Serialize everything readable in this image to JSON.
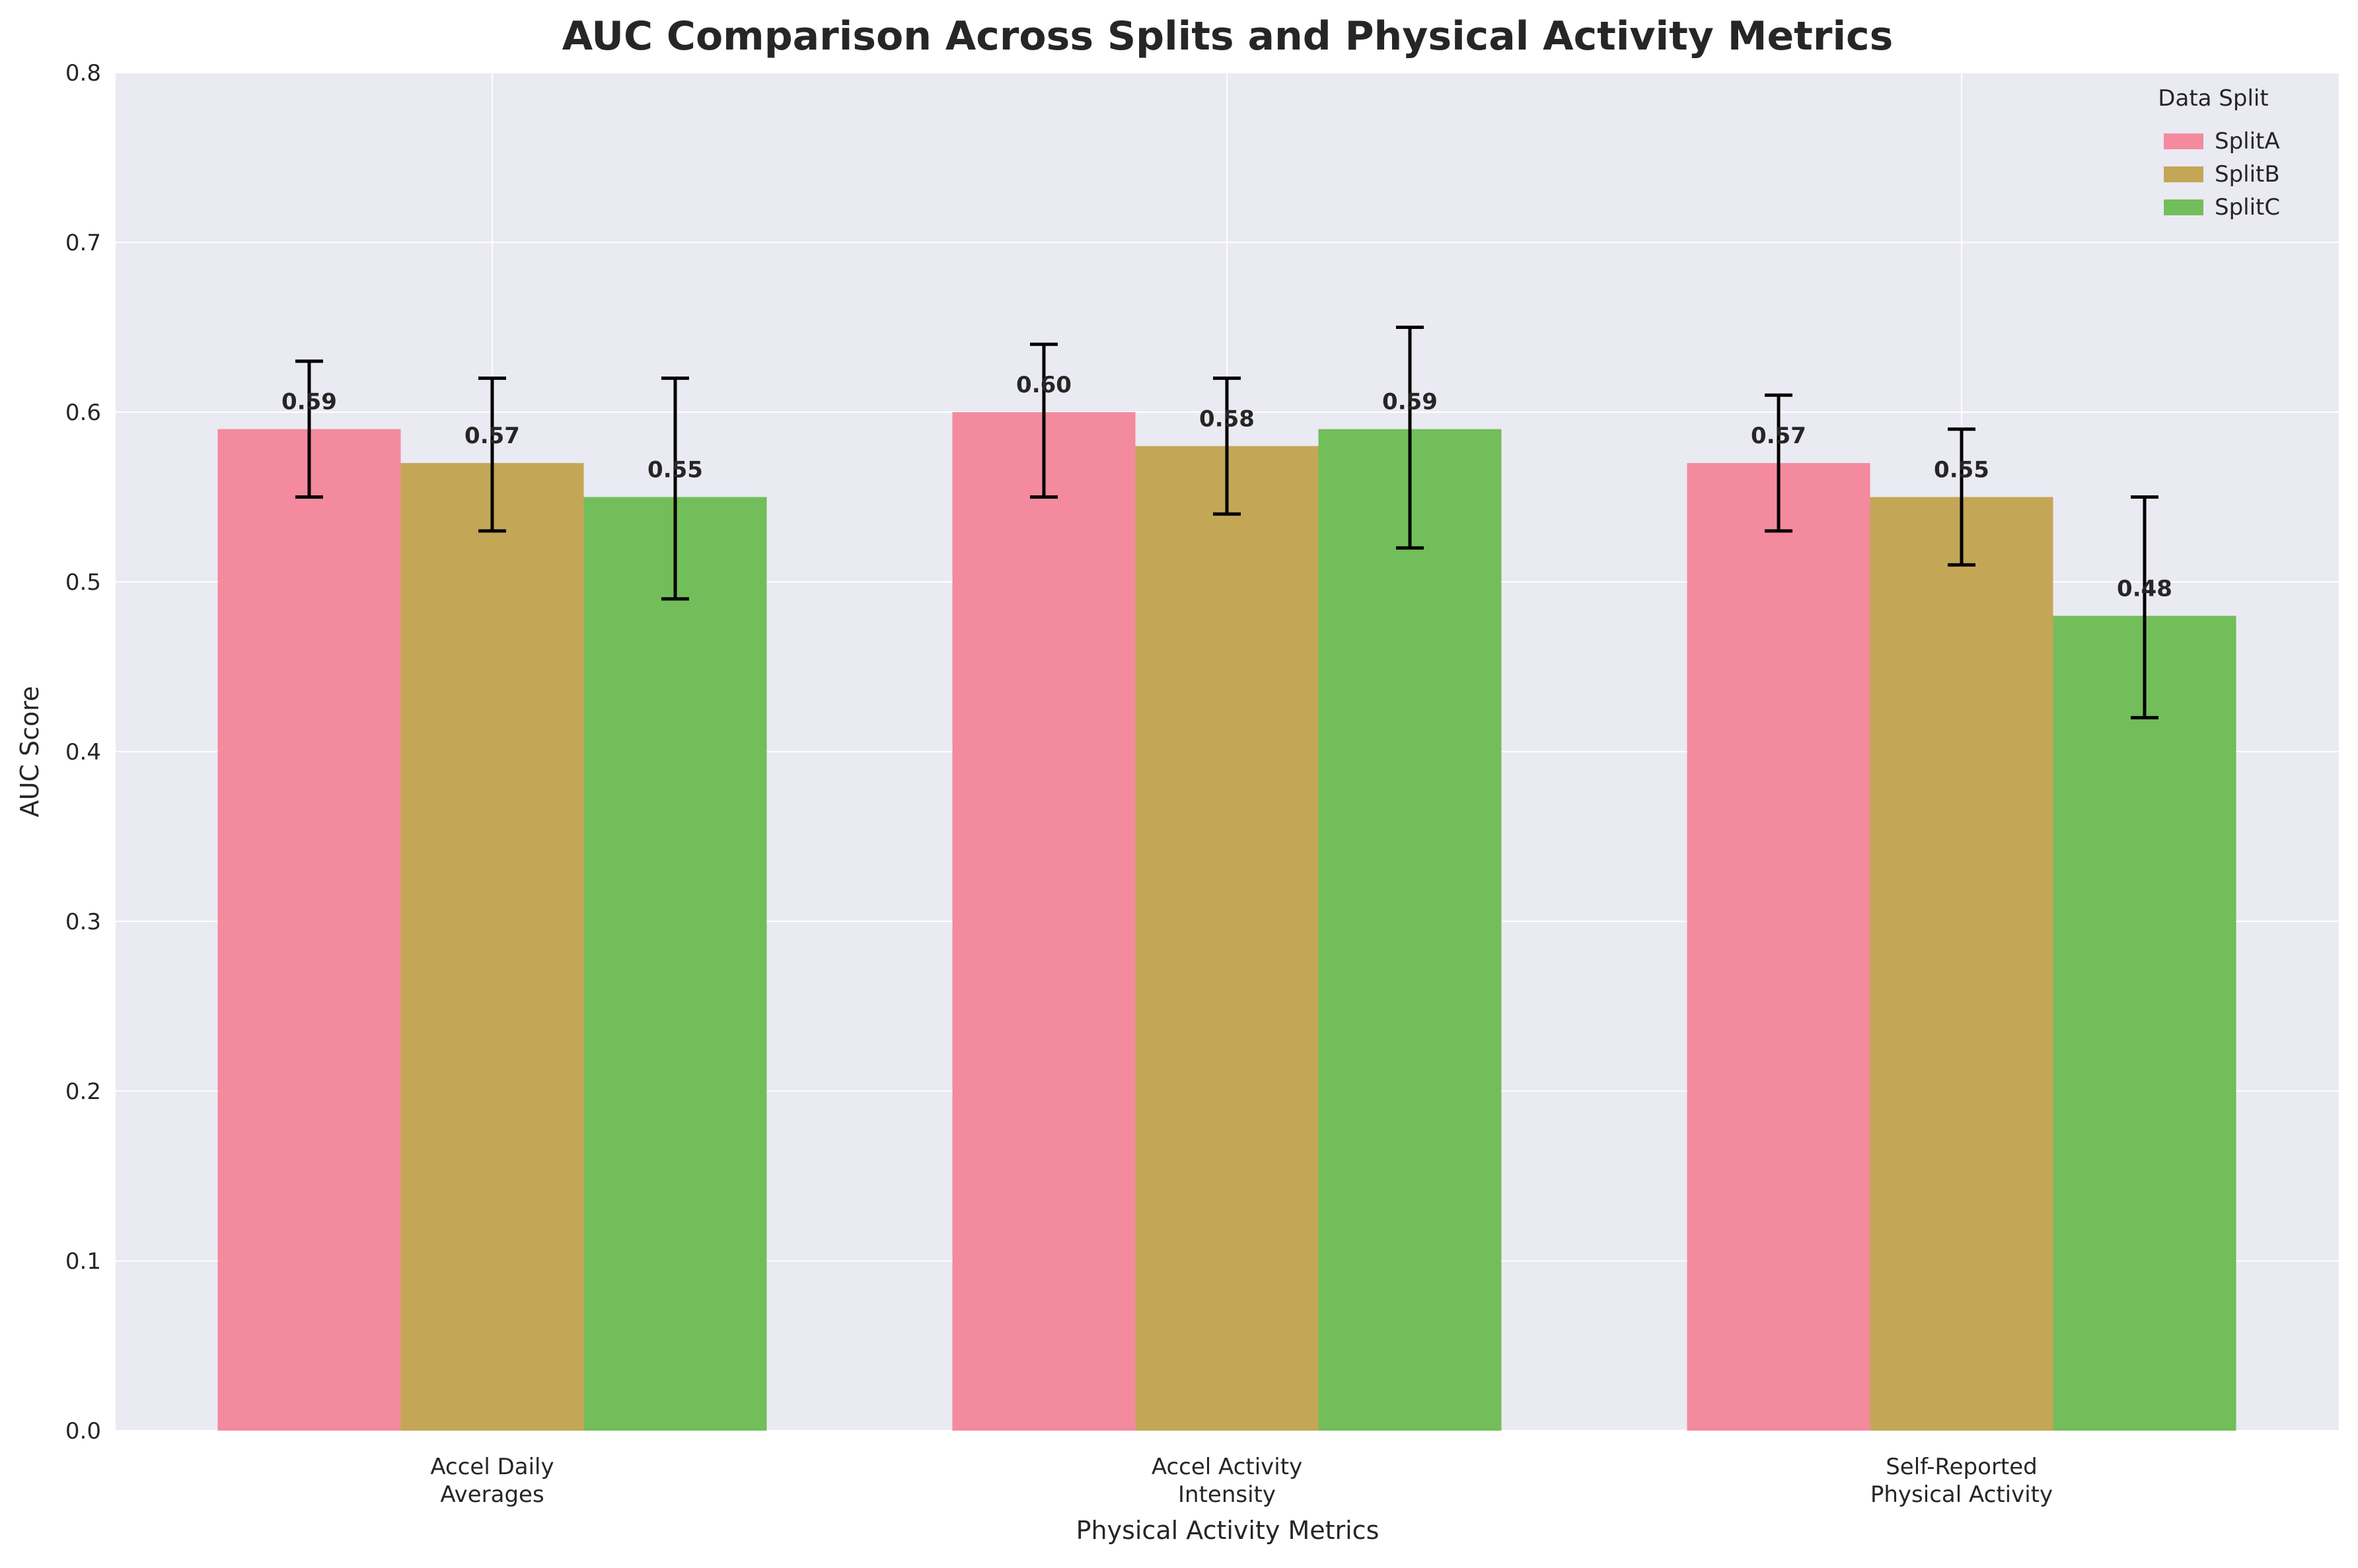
{
  "chart_data": {
    "type": "bar",
    "title": "AUC Comparison Across Splits and Physical Activity Metrics",
    "xlabel": "Physical Activity Metrics",
    "ylabel": "AUC Score",
    "ylim": [
      0,
      0.8
    ],
    "yticks": [
      "0.0",
      "0.1",
      "0.2",
      "0.3",
      "0.4",
      "0.5",
      "0.6",
      "0.7",
      "0.8"
    ],
    "categories": [
      [
        "Accel Daily",
        "Averages"
      ],
      [
        "Accel Activity",
        "Intensity"
      ],
      [
        "Self-Reported",
        "Physical Activity"
      ]
    ],
    "grid": true,
    "legend_title": "Data Split",
    "legend_position": "top-right",
    "series": [
      {
        "name": "SplitA",
        "color": "#f48a9d",
        "values": [
          0.59,
          0.6,
          0.57
        ],
        "err_low": [
          0.55,
          0.55,
          0.53
        ],
        "err_high": [
          0.63,
          0.64,
          0.61
        ],
        "labels": [
          "0.59",
          "0.60",
          "0.57"
        ]
      },
      {
        "name": "SplitB",
        "color": "#c4a657",
        "values": [
          0.57,
          0.58,
          0.55
        ],
        "err_low": [
          0.53,
          0.54,
          0.51
        ],
        "err_high": [
          0.62,
          0.62,
          0.59
        ],
        "labels": [
          "0.57",
          "0.58",
          "0.55"
        ]
      },
      {
        "name": "SplitC",
        "color": "#72be5a",
        "values": [
          0.55,
          0.59,
          0.48
        ],
        "err_low": [
          0.49,
          0.52,
          0.42
        ],
        "err_high": [
          0.62,
          0.65,
          0.55
        ],
        "labels": [
          "0.55",
          "0.59",
          "0.48"
        ]
      }
    ]
  }
}
